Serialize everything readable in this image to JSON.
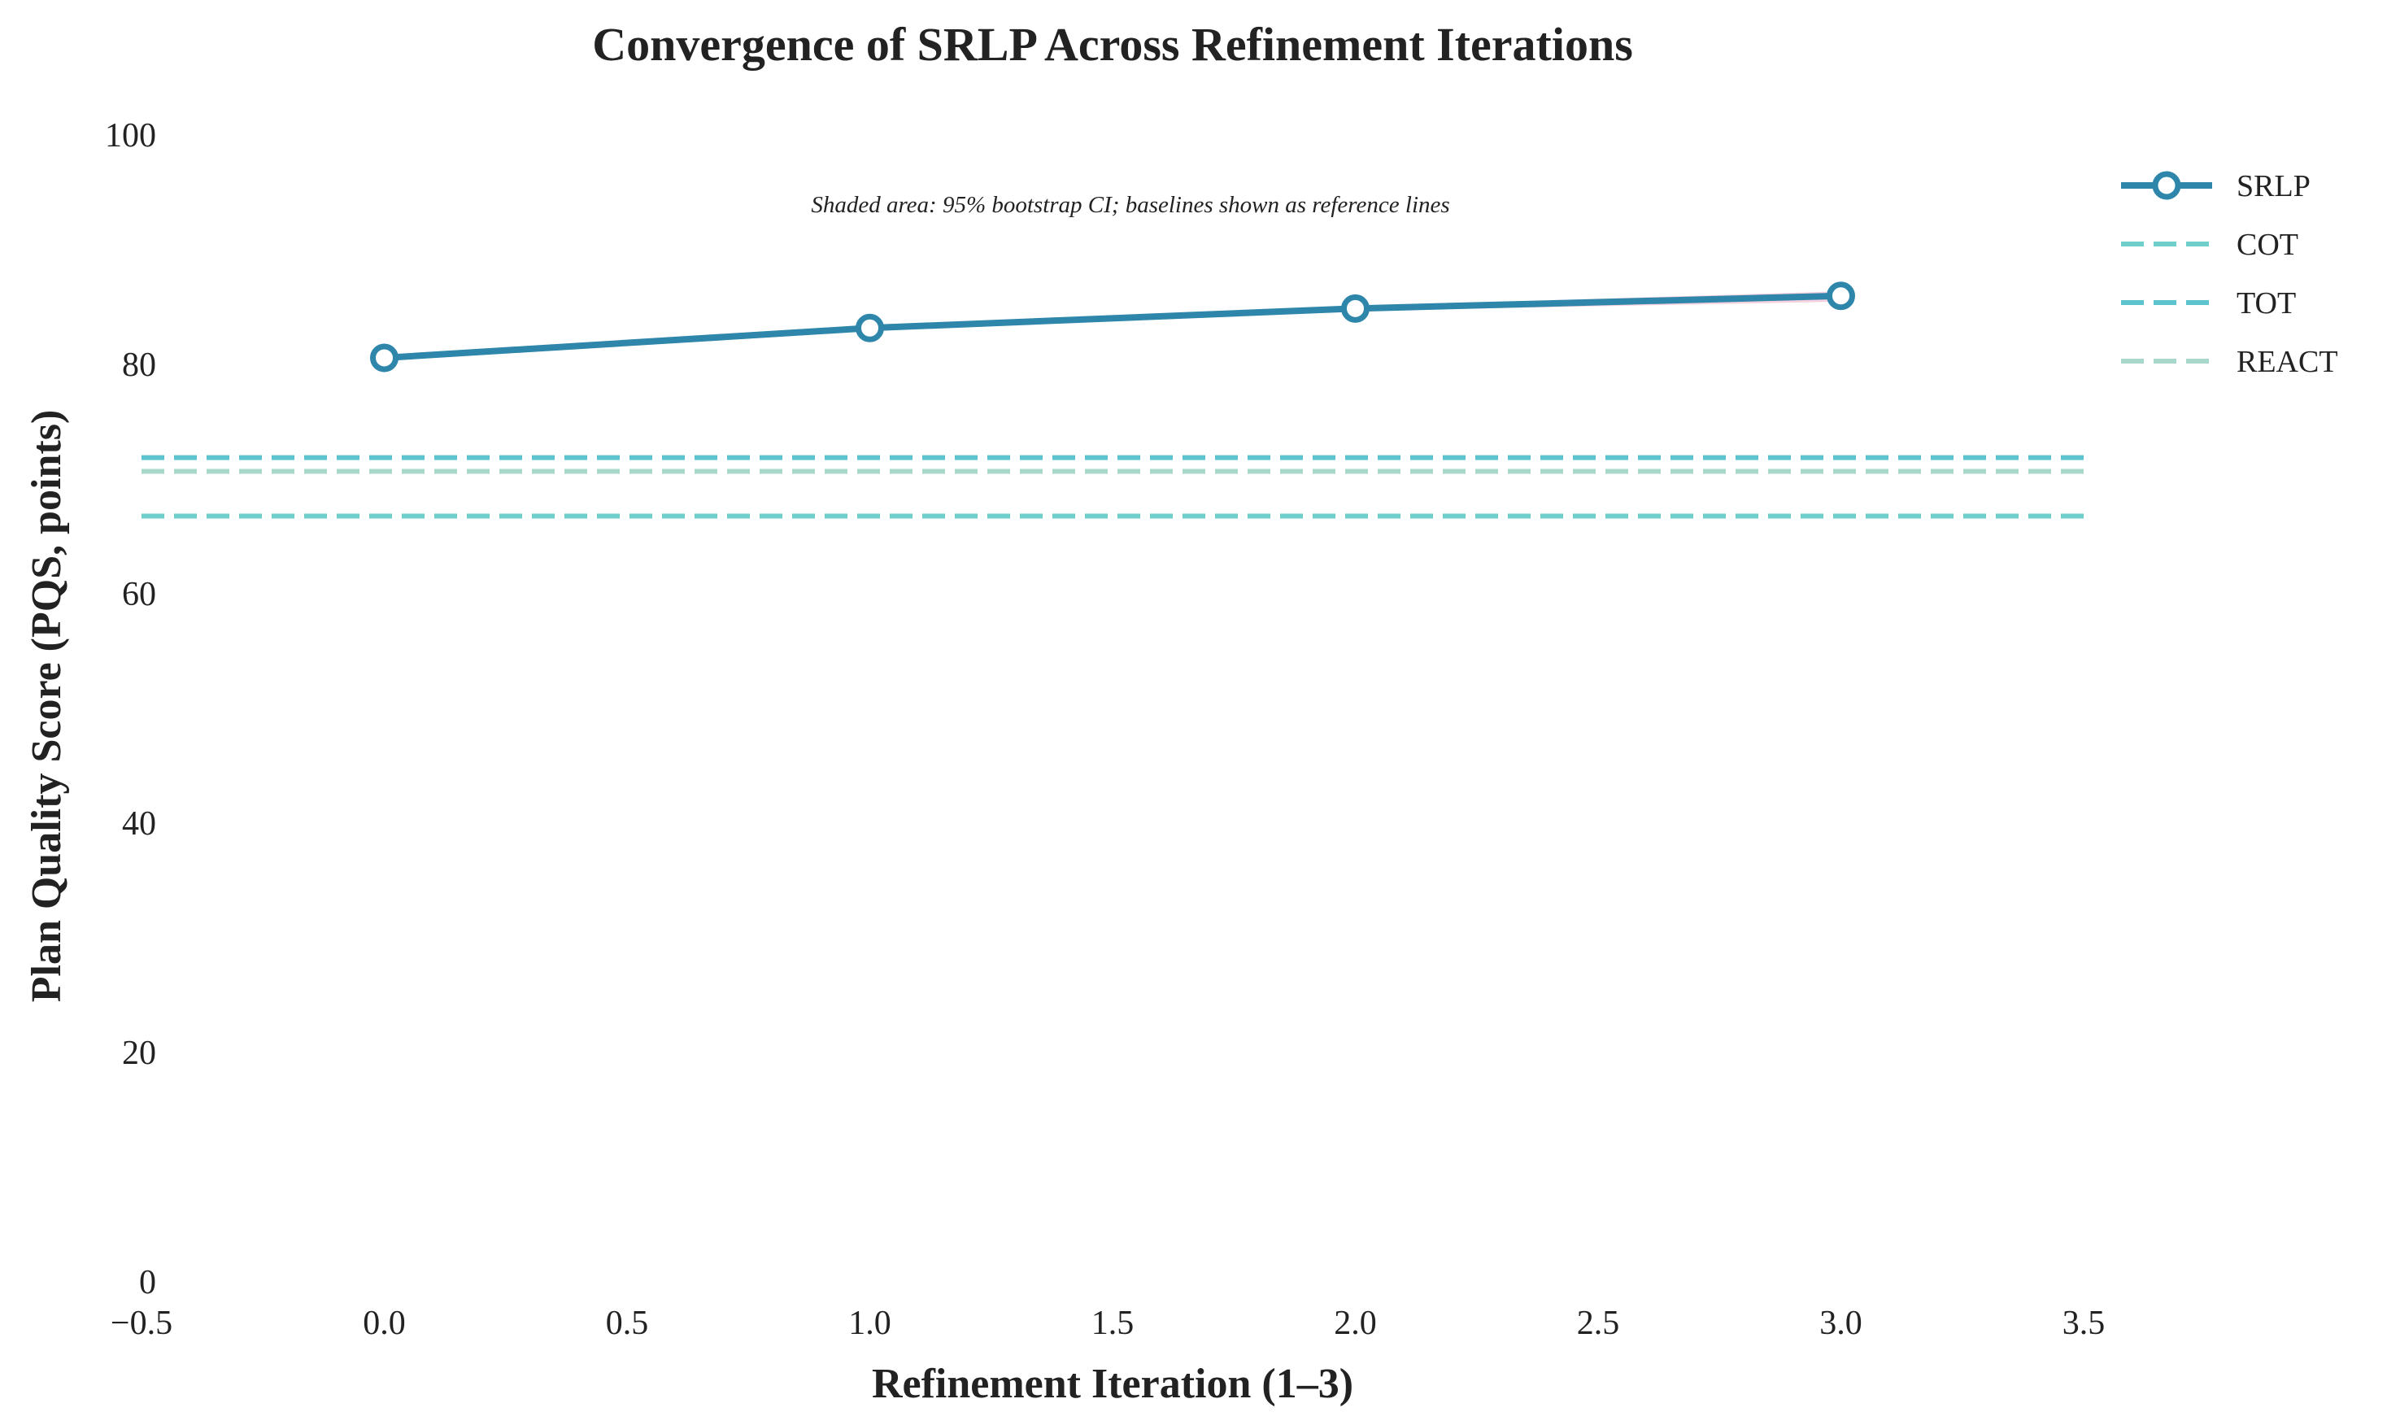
{
  "chart_data": {
    "type": "line",
    "title": "Convergence of SRLP Across Refinement Iterations",
    "xlabel": "Refinement Iteration (1–3)",
    "ylabel": "Plan Quality Score (PQS, points)",
    "annotation": "Shaded area: 95% bootstrap CI; baselines shown as reference lines",
    "xlim": [
      -0.5,
      3.5
    ],
    "ylim": [
      0,
      100
    ],
    "xticks": [
      -0.5,
      0.0,
      0.5,
      1.0,
      1.5,
      2.0,
      2.5,
      3.0,
      3.5
    ],
    "xtick_labels": [
      "−0.5",
      "0.0",
      "0.5",
      "1.0",
      "1.5",
      "2.0",
      "2.5",
      "3.0",
      "3.5"
    ],
    "yticks": [
      0,
      20,
      40,
      60,
      80,
      100
    ],
    "ytick_labels": [
      "0",
      "20",
      "40",
      "60",
      "80",
      "100"
    ],
    "grid": false,
    "legend_position": "top-right, outside plot",
    "series": [
      {
        "name": "SRLP",
        "style": "solid-with-open-circle-markers",
        "color": "#2E86AB",
        "x": [
          0,
          1,
          2,
          3
        ],
        "y": [
          80.5,
          83.1,
          84.8,
          85.9
        ],
        "ci_lower": [
          80.3,
          82.9,
          84.6,
          85.4
        ],
        "ci_upper": [
          80.7,
          83.3,
          85.0,
          86.3
        ],
        "ci_color": "#F2C6D6"
      },
      {
        "name": "COT",
        "style": "dashed-reference",
        "color": "#6FCFCB",
        "y": 66.7
      },
      {
        "name": "TOT",
        "style": "dashed-reference",
        "color": "#5DC4CF",
        "y": 71.8
      },
      {
        "name": "REACT",
        "style": "dashed-reference",
        "color": "#A8D8CB",
        "y": 70.6
      }
    ]
  }
}
